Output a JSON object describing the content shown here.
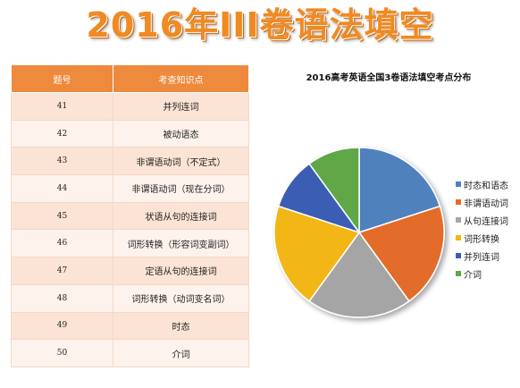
{
  "title": "2016年III卷语法填空",
  "table": {
    "headers": [
      "题号",
      "考查知识点"
    ],
    "rows": [
      {
        "num": "41",
        "point": "并列连词"
      },
      {
        "num": "42",
        "point": "被动语态"
      },
      {
        "num": "43",
        "point": "非谓语动词（不定式）"
      },
      {
        "num": "44",
        "point": "非谓语动词（现在分词）"
      },
      {
        "num": "45",
        "point": "状语从句的连接词"
      },
      {
        "num": "46",
        "point": "词形转换（形容词变副词）"
      },
      {
        "num": "47",
        "point": "定语从句的连接词"
      },
      {
        "num": "48",
        "point": "词形转换（动词变名词）"
      },
      {
        "num": "49",
        "point": "时态"
      },
      {
        "num": "50",
        "point": "介词"
      }
    ]
  },
  "chart_data": {
    "type": "pie",
    "title": "2016高考英语全国3卷语法填空考点分布",
    "start_angle_deg": 0,
    "direction": "clockwise",
    "legend_position": "right",
    "slices": [
      {
        "label": "时态和语态",
        "value": 2,
        "color": "#4f81bd"
      },
      {
        "label": "非谓语动词",
        "value": 2,
        "color": "#e46c2a"
      },
      {
        "label": "从句连接词",
        "value": 2,
        "color": "#a5a5a5"
      },
      {
        "label": "词形转换",
        "value": 2,
        "color": "#f2b613"
      },
      {
        "label": "并列连词",
        "value": 1,
        "color": "#3a5db4"
      },
      {
        "label": "介词",
        "value": 1,
        "color": "#5ea746"
      }
    ]
  }
}
